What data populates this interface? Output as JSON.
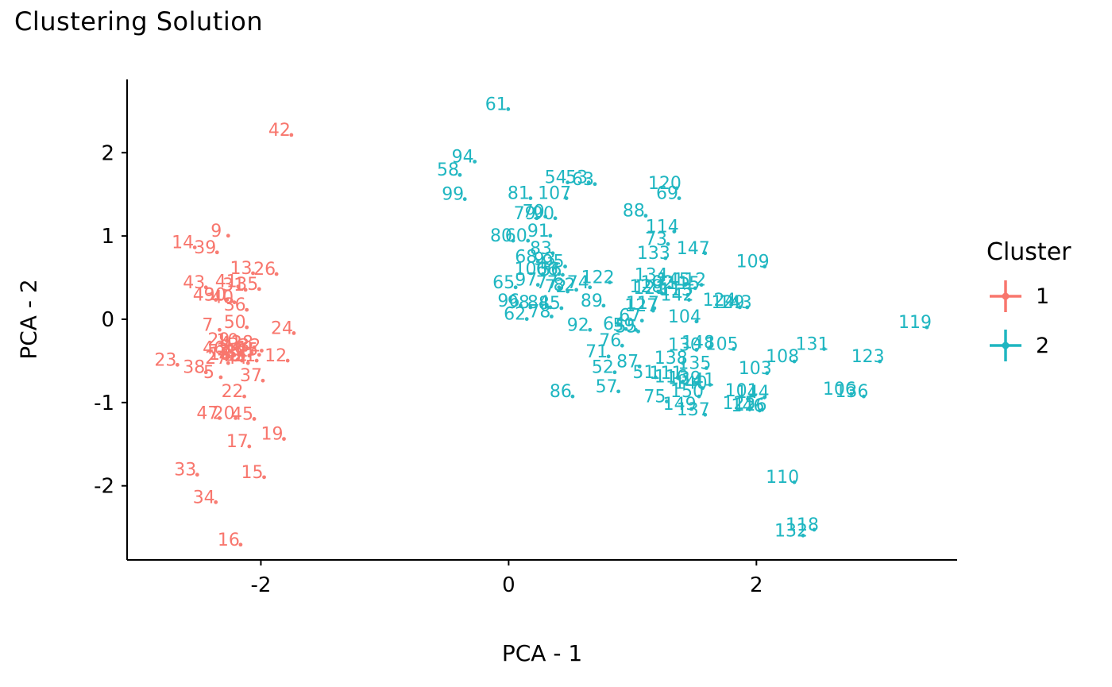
{
  "title": "Clustering Solution",
  "chart_data": {
    "type": "scatter",
    "title": "Clustering Solution",
    "xlabel": "PCA - 1",
    "ylabel": "PCA - 2",
    "xlim": [
      -3.08,
      3.62
    ],
    "ylim": [
      -2.89,
      2.88
    ],
    "x_ticks": [
      -2,
      0,
      2
    ],
    "y_ticks": [
      -2,
      -1,
      0,
      1,
      2
    ],
    "grid": false,
    "point_label_style": "observation id text labels colored by cluster",
    "legend": {
      "title": "Cluster",
      "position": "right",
      "entries": [
        {
          "label": "1",
          "color": "#F8766D"
        },
        {
          "label": "2",
          "color": "#1FB6C1"
        }
      ]
    },
    "series": [
      {
        "name": "1",
        "color": "#F8766D",
        "points": [
          [
            1,
            -2.26,
            -0.33
          ],
          [
            2,
            -2.31,
            -0.36
          ],
          [
            3,
            -2.22,
            -0.3
          ],
          [
            4,
            -2.29,
            -0.28
          ],
          [
            5,
            -2.42,
            -0.63
          ],
          [
            6,
            -2.17,
            -0.34
          ],
          [
            7,
            -2.43,
            -0.06
          ],
          [
            8,
            -2.24,
            -0.39
          ],
          [
            9,
            -2.36,
            1.07
          ],
          [
            10,
            -2.27,
            -0.25
          ],
          [
            11,
            -2.19,
            -0.37
          ],
          [
            12,
            -1.88,
            -0.43
          ],
          [
            13,
            -2.16,
            0.62
          ],
          [
            14,
            -2.63,
            0.93
          ],
          [
            15,
            -2.07,
            -1.83
          ],
          [
            16,
            -2.26,
            -2.64
          ],
          [
            17,
            -2.19,
            -1.46
          ],
          [
            18,
            -2.33,
            -0.41
          ],
          [
            19,
            -1.91,
            -1.37
          ],
          [
            20,
            -2.3,
            -1.12
          ],
          [
            21,
            -2.13,
            -0.43
          ],
          [
            22,
            -2.23,
            -0.86
          ],
          [
            23,
            -2.77,
            -0.48
          ],
          [
            24,
            -1.83,
            -0.1
          ],
          [
            25,
            -2.11,
            -0.36
          ],
          [
            26,
            -1.97,
            0.61
          ],
          [
            27,
            -2.36,
            -0.46
          ],
          [
            28,
            -2.15,
            -0.27
          ],
          [
            29,
            -2.34,
            -0.24
          ],
          [
            30,
            -2.37,
            0.3
          ],
          [
            31,
            -2.22,
            0.42
          ],
          [
            32,
            -2.09,
            -0.31
          ],
          [
            33,
            -2.61,
            -1.8
          ],
          [
            34,
            -2.46,
            -2.13
          ],
          [
            35,
            -2.11,
            0.43
          ],
          [
            36,
            -2.21,
            0.18
          ],
          [
            37,
            -2.08,
            -0.67
          ],
          [
            38,
            -2.54,
            -0.57
          ],
          [
            39,
            -2.45,
            0.87
          ],
          [
            40,
            -2.31,
            0.27
          ],
          [
            41,
            -2.28,
            0.46
          ],
          [
            42,
            -1.85,
            2.28
          ],
          [
            43,
            -2.54,
            0.45
          ],
          [
            44,
            -2.2,
            -0.46
          ],
          [
            45,
            -2.15,
            -1.13
          ],
          [
            46,
            -2.38,
            -0.34
          ],
          [
            47,
            -2.43,
            -1.12
          ],
          [
            48,
            -2.25,
            -0.43
          ],
          [
            49,
            -2.46,
            0.3
          ],
          [
            50,
            -2.21,
            -0.03
          ]
        ]
      },
      {
        "name": "2",
        "color": "#1FB6C1",
        "points": [
          [
            51,
            1.09,
            -0.63
          ],
          [
            52,
            0.76,
            -0.57
          ],
          [
            53,
            0.55,
            1.71
          ],
          [
            54,
            0.38,
            1.71
          ],
          [
            55,
            0.95,
            -0.08
          ],
          [
            56,
            0.34,
            0.6
          ],
          [
            57,
            0.79,
            -0.8
          ],
          [
            58,
            -0.49,
            1.8
          ],
          [
            59,
            0.93,
            -0.06
          ],
          [
            60,
            0.06,
            1.01
          ],
          [
            61,
            -0.1,
            2.59
          ],
          [
            62,
            0.05,
            0.07
          ],
          [
            63,
            0.6,
            1.69
          ],
          [
            64,
            0.85,
            -0.05
          ],
          [
            65,
            -0.04,
            0.45
          ],
          [
            66,
            0.31,
            0.61
          ],
          [
            67,
            0.98,
            0.05
          ],
          [
            68,
            0.14,
            0.76
          ],
          [
            69,
            1.28,
            1.52
          ],
          [
            70,
            0.2,
            1.3
          ],
          [
            71,
            0.71,
            -0.38
          ],
          [
            72,
            0.38,
            0.4
          ],
          [
            73,
            1.19,
            0.97
          ],
          [
            74,
            0.56,
            0.45
          ],
          [
            75,
            1.18,
            -0.92
          ],
          [
            76,
            0.82,
            -0.25
          ],
          [
            77,
            0.31,
            0.45
          ],
          [
            78,
            0.25,
            0.1
          ],
          [
            79,
            0.13,
            1.28
          ],
          [
            80,
            -0.06,
            1.01
          ],
          [
            81,
            0.08,
            1.52
          ],
          [
            82,
            0.45,
            0.42
          ],
          [
            83,
            0.26,
            0.86
          ],
          [
            84,
            0.24,
            0.21
          ],
          [
            85,
            0.33,
            0.2
          ],
          [
            86,
            0.42,
            -0.86
          ],
          [
            87,
            0.96,
            -0.5
          ],
          [
            88,
            1.01,
            1.31
          ],
          [
            89,
            0.67,
            0.23
          ],
          [
            90,
            0.28,
            1.28
          ],
          [
            91,
            0.24,
            1.07
          ],
          [
            92,
            0.56,
            -0.06
          ],
          [
            93,
            0.29,
            0.73
          ],
          [
            94,
            -0.37,
            1.96
          ],
          [
            95,
            0.36,
            0.7
          ],
          [
            96,
            0.0,
            0.23
          ],
          [
            97,
            0.14,
            0.48
          ],
          [
            98,
            0.08,
            0.21
          ],
          [
            99,
            -0.45,
            1.51
          ],
          [
            100,
            0.18,
            0.61
          ],
          [
            101,
            1.88,
            -0.85
          ],
          [
            102,
            1.2,
            0.45
          ],
          [
            103,
            1.99,
            -0.58
          ],
          [
            104,
            1.42,
            0.04
          ],
          [
            105,
            1.72,
            -0.29
          ],
          [
            106,
            2.67,
            -0.83
          ],
          [
            107,
            0.37,
            1.52
          ],
          [
            108,
            2.21,
            -0.44
          ],
          [
            109,
            1.97,
            0.7
          ],
          [
            110,
            2.21,
            -1.89
          ],
          [
            111,
            1.27,
            -0.64
          ],
          [
            112,
            1.46,
            0.48
          ],
          [
            113,
            1.35,
            0.36
          ],
          [
            114,
            1.24,
            1.12
          ],
          [
            115,
            1.41,
            0.44
          ],
          [
            116,
            1.31,
            -0.68
          ],
          [
            117,
            1.08,
            0.2
          ],
          [
            118,
            2.37,
            -2.46
          ],
          [
            119,
            3.28,
            -0.03
          ],
          [
            120,
            1.26,
            1.64
          ],
          [
            121,
            1.14,
            0.38
          ],
          [
            122,
            0.72,
            0.51
          ],
          [
            123,
            2.9,
            -0.44
          ],
          [
            124,
            1.7,
            0.24
          ],
          [
            125,
            1.86,
            -1.0
          ],
          [
            126,
            1.95,
            -1.02
          ],
          [
            127,
            1.07,
            0.17
          ],
          [
            128,
            1.11,
            0.4
          ],
          [
            129,
            1.77,
            0.21
          ],
          [
            130,
            1.42,
            -0.3
          ],
          [
            131,
            2.45,
            -0.29
          ],
          [
            132,
            2.28,
            -2.53
          ],
          [
            133,
            1.17,
            0.8
          ],
          [
            134,
            1.15,
            0.54
          ],
          [
            135,
            1.5,
            -0.52
          ],
          [
            136,
            2.77,
            -0.86
          ],
          [
            137,
            1.49,
            -1.08
          ],
          [
            138,
            1.31,
            -0.46
          ],
          [
            139,
            1.42,
            -0.7
          ],
          [
            140,
            1.47,
            -0.76
          ],
          [
            141,
            1.53,
            -0.72
          ],
          [
            142,
            1.36,
            0.3
          ],
          [
            143,
            1.83,
            0.21
          ],
          [
            144,
            1.97,
            -0.87
          ],
          [
            145,
            1.33,
            0.48
          ],
          [
            146,
            1.93,
            -1.03
          ],
          [
            147,
            1.49,
            0.86
          ],
          [
            148,
            1.53,
            -0.27
          ],
          [
            149,
            1.38,
            -1.01
          ],
          [
            150,
            1.44,
            -0.86
          ]
        ]
      }
    ]
  }
}
